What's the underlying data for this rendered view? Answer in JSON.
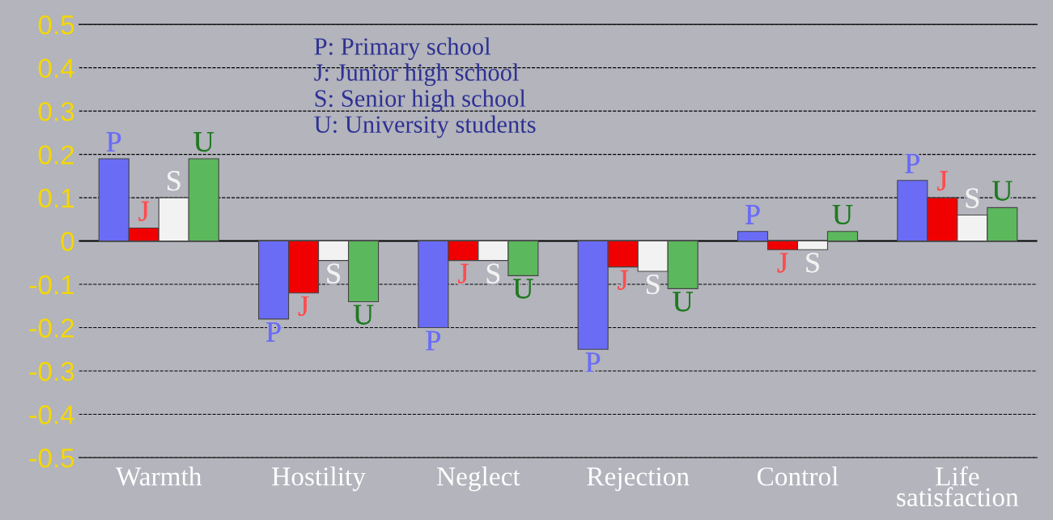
{
  "chart_data": {
    "type": "bar",
    "categories": [
      "Warmth",
      "Hostility",
      "Neglect",
      "Rejection",
      "Control",
      "Life\nsatisfaction"
    ],
    "series": [
      {
        "name": "P",
        "color": "#6a6cf6",
        "values": [
          0.19,
          -0.18,
          -0.2,
          -0.25,
          0.022,
          0.14
        ]
      },
      {
        "name": "J",
        "color": "#f00000",
        "values": [
          0.03,
          -0.12,
          -0.045,
          -0.06,
          -0.02,
          0.1
        ]
      },
      {
        "name": "S",
        "color": "#f2f2f2",
        "values": [
          0.1,
          -0.045,
          -0.045,
          -0.07,
          -0.02,
          0.06
        ]
      },
      {
        "name": "U",
        "color": "#5cb85c",
        "values": [
          0.19,
          -0.14,
          -0.08,
          -0.11,
          0.022,
          0.077
        ]
      }
    ],
    "ylim": [
      -0.5,
      0.5
    ],
    "yticks": [
      -0.5,
      -0.4,
      -0.3,
      -0.2,
      -0.1,
      0,
      0.1,
      0.2,
      0.3,
      0.4,
      0.5
    ],
    "grid": "y",
    "legend": false,
    "annotations": [
      "P: Primary school",
      "J: Junior high school",
      "S: Senior high school",
      "U: University students"
    ]
  }
}
